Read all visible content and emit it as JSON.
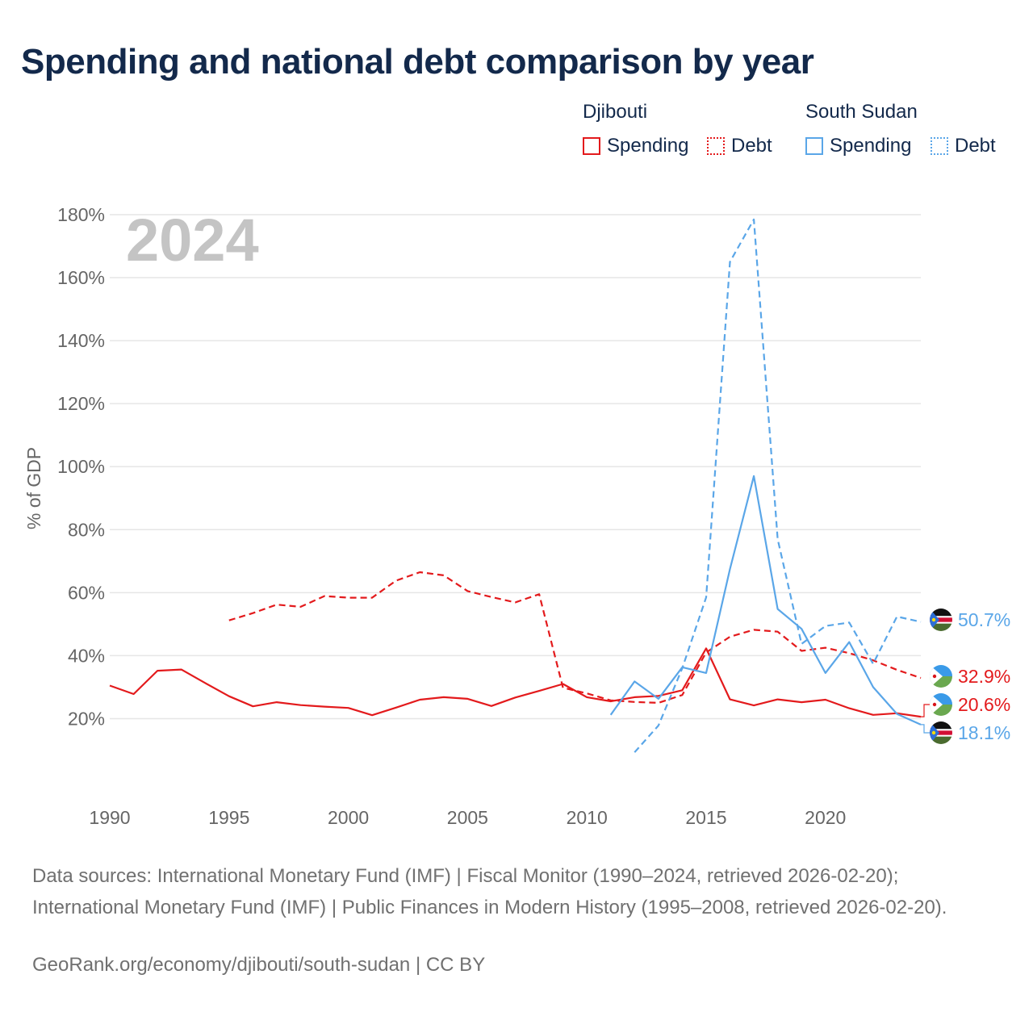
{
  "title": "Spending and national debt comparison by year",
  "legend": {
    "groups": [
      {
        "name": "Djibouti",
        "items": [
          {
            "label": "Spending",
            "style": "solid"
          },
          {
            "label": "Debt",
            "style": "dotted"
          }
        ],
        "color": "#e31a1c"
      },
      {
        "name": "South Sudan",
        "items": [
          {
            "label": "Spending",
            "style": "solid"
          },
          {
            "label": "Debt",
            "style": "dotted"
          }
        ],
        "color": "#5aa6e8"
      }
    ]
  },
  "footer": {
    "sources": "Data sources: International Monetary Fund (IMF) | Fiscal Monitor (1990–2024, retrieved 2026-02-20); International Monetary Fund (IMF) | Public Finances in Modern History (1995–2008, retrieved 2026-02-20).",
    "credit": "GeoRank.org/economy/djibouti/south-sudan | CC BY"
  },
  "chart_data": {
    "type": "line",
    "year_watermark": "2024",
    "ylabel": "% of GDP",
    "xlim": [
      1990,
      2024
    ],
    "ylim": [
      0,
      180
    ],
    "y_ticks": [
      20,
      40,
      60,
      80,
      100,
      120,
      140,
      160,
      180
    ],
    "y_tick_labels": [
      "20%",
      "40%",
      "60%",
      "80%",
      "100%",
      "120%",
      "140%",
      "160%",
      "180%"
    ],
    "x_ticks": [
      1990,
      1995,
      2000,
      2005,
      2010,
      2015,
      2020
    ],
    "x_tick_labels": [
      "1990",
      "1995",
      "2000",
      "2005",
      "2010",
      "2015",
      "2020"
    ],
    "grid": true,
    "series": [
      {
        "name": "Djibouti Debt",
        "country": "Djibouti",
        "metric": "Debt",
        "color": "#e31a1c",
        "dash": true,
        "end_label": "32.9%",
        "points": [
          [
            1995,
            51.2
          ],
          [
            1996,
            53.5
          ],
          [
            1997,
            56.2
          ],
          [
            1998,
            55.5
          ],
          [
            1999,
            58.9
          ],
          [
            2000,
            58.4
          ],
          [
            2001,
            58.4
          ],
          [
            2002,
            63.8
          ],
          [
            2003,
            66.5
          ],
          [
            2004,
            65.5
          ],
          [
            2005,
            60.5
          ],
          [
            2006,
            58.6
          ],
          [
            2007,
            56.9
          ],
          [
            2008,
            59.5
          ],
          [
            2009,
            29.8
          ],
          [
            2010,
            28.0
          ],
          [
            2011,
            25.8
          ],
          [
            2012,
            25.3
          ],
          [
            2013,
            25.0
          ],
          [
            2014,
            27.5
          ],
          [
            2015,
            41.0
          ],
          [
            2016,
            46.0
          ],
          [
            2017,
            48.2
          ],
          [
            2018,
            47.6
          ],
          [
            2019,
            41.5
          ],
          [
            2020,
            42.5
          ],
          [
            2021,
            40.8
          ],
          [
            2022,
            38.5
          ],
          [
            2023,
            35.5
          ],
          [
            2024,
            32.9
          ]
        ]
      },
      {
        "name": "Djibouti Spending",
        "country": "Djibouti",
        "metric": "Spending",
        "color": "#e31a1c",
        "dash": false,
        "end_label": "20.6%",
        "points": [
          [
            1990,
            30.5
          ],
          [
            1991,
            27.8
          ],
          [
            1992,
            35.2
          ],
          [
            1993,
            35.6
          ],
          [
            1994,
            31.3
          ],
          [
            1995,
            27.1
          ],
          [
            1996,
            23.9
          ],
          [
            1997,
            25.2
          ],
          [
            1998,
            24.3
          ],
          [
            1999,
            23.8
          ],
          [
            2000,
            23.4
          ],
          [
            2001,
            21.1
          ],
          [
            2002,
            23.5
          ],
          [
            2003,
            26.0
          ],
          [
            2004,
            26.8
          ],
          [
            2005,
            26.3
          ],
          [
            2006,
            24.0
          ],
          [
            2007,
            26.7
          ],
          [
            2008,
            28.8
          ],
          [
            2009,
            31.0
          ],
          [
            2010,
            26.8
          ],
          [
            2011,
            25.5
          ],
          [
            2012,
            26.8
          ],
          [
            2013,
            27.2
          ],
          [
            2014,
            29.0
          ],
          [
            2015,
            42.3
          ],
          [
            2016,
            26.1
          ],
          [
            2017,
            24.2
          ],
          [
            2018,
            26.1
          ],
          [
            2019,
            25.2
          ],
          [
            2020,
            26.0
          ],
          [
            2021,
            23.3
          ],
          [
            2022,
            21.2
          ],
          [
            2023,
            21.7
          ],
          [
            2024,
            20.6
          ]
        ]
      },
      {
        "name": "South Sudan Debt",
        "country": "South Sudan",
        "metric": "Debt",
        "color": "#5aa6e8",
        "dash": true,
        "end_label": "50.7%",
        "points": [
          [
            2012,
            9.3
          ],
          [
            2013,
            17.8
          ],
          [
            2014,
            36.0
          ],
          [
            2015,
            58.5
          ],
          [
            2016,
            165.0
          ],
          [
            2017,
            178.5
          ],
          [
            2018,
            77.0
          ],
          [
            2019,
            43.7
          ],
          [
            2020,
            49.4
          ],
          [
            2021,
            50.5
          ],
          [
            2022,
            37.4
          ],
          [
            2023,
            52.4
          ],
          [
            2024,
            50.7
          ]
        ]
      },
      {
        "name": "South Sudan Spending",
        "country": "South Sudan",
        "metric": "Spending",
        "color": "#5aa6e8",
        "dash": false,
        "end_label": "18.1%",
        "points": [
          [
            2011,
            21.2
          ],
          [
            2012,
            31.8
          ],
          [
            2013,
            26.3
          ],
          [
            2014,
            36.3
          ],
          [
            2015,
            34.5
          ],
          [
            2016,
            67.5
          ],
          [
            2017,
            97.0
          ],
          [
            2018,
            54.8
          ],
          [
            2019,
            48.5
          ],
          [
            2020,
            34.5
          ],
          [
            2021,
            44.3
          ],
          [
            2022,
            30.0
          ],
          [
            2023,
            21.5
          ],
          [
            2024,
            18.1
          ]
        ]
      }
    ]
  }
}
